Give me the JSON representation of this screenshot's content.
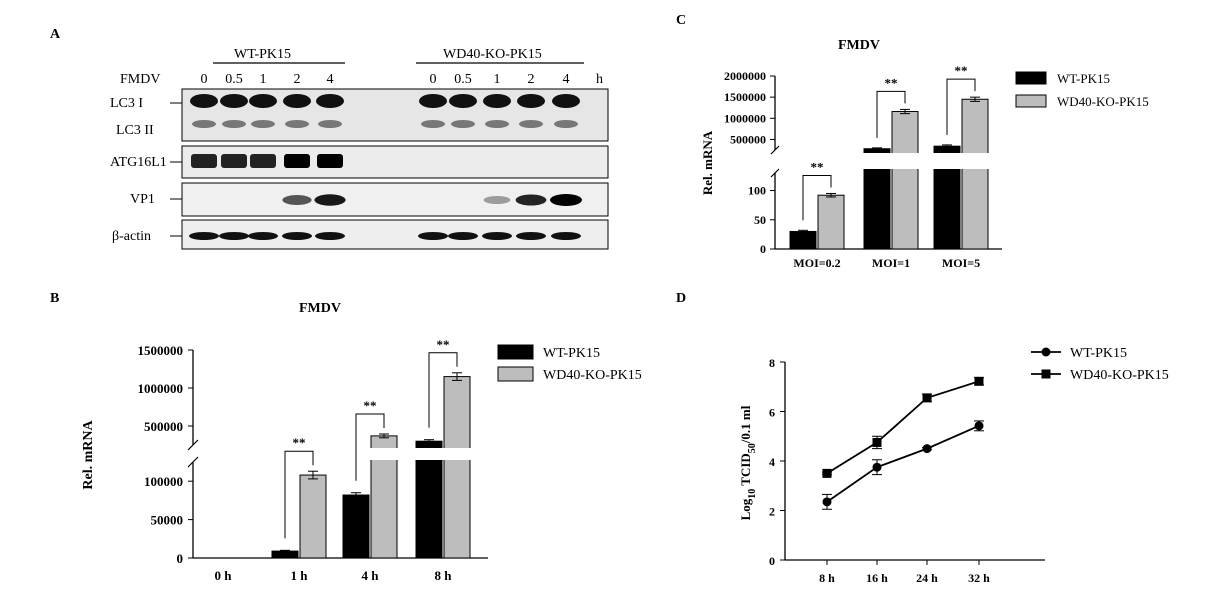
{
  "panels": {
    "A": {
      "letter": "A",
      "group_wt": "WT-PK15",
      "group_ko": "WD40-KO-PK15",
      "treatment": "FMDV",
      "times_wt": [
        "0",
        "0.5",
        "1",
        "2",
        "4"
      ],
      "times_ko": [
        "0",
        "0.5",
        "1",
        "2",
        "4"
      ],
      "unit": "h",
      "rows": [
        {
          "label": "LC3 I",
          "label2": "LC3 II"
        },
        {
          "label": "ATG16L1"
        },
        {
          "label": "VP1"
        },
        {
          "label": "β-actin"
        }
      ]
    },
    "B": {
      "letter": "B"
    },
    "C": {
      "letter": "C"
    },
    "D": {
      "letter": "D"
    }
  },
  "chart_data": [
    {
      "panel": "C",
      "type": "bar",
      "title": "FMDV",
      "ylabel": "Rel. mRNA",
      "categories": [
        "MOI=0.2",
        "MOI=1",
        "MOI=5"
      ],
      "series": [
        {
          "name": "WT-PK15",
          "color": "#000000",
          "values": [
            30,
            280000,
            340000
          ],
          "err": [
            2,
            20000,
            30000
          ]
        },
        {
          "name": "WD40-KO-PK15",
          "color": "#bdbdbd",
          "values": [
            92,
            1160000,
            1450000
          ],
          "err": [
            3,
            50000,
            50000
          ]
        }
      ],
      "axis_break": true,
      "yticks_lower": [
        0,
        50,
        100
      ],
      "yticks_upper": [
        "500000",
        "1000000",
        "1500000",
        "2000000"
      ],
      "significance": [
        "**",
        "**",
        "**"
      ],
      "legend": "right"
    },
    {
      "panel": "B",
      "type": "bar",
      "title": "FMDV",
      "ylabel": "Rel. mRNA",
      "categories": [
        "0 h",
        "1 h",
        "4 h",
        "8 h"
      ],
      "series": [
        {
          "name": "WT-PK15",
          "color": "#000000",
          "values": [
            0,
            9000,
            82000,
            300000
          ],
          "err": [
            0,
            1000,
            3000,
            20000
          ]
        },
        {
          "name": "WD40-KO-PK15",
          "color": "#bdbdbd",
          "values": [
            0,
            108000,
            370000,
            1150000
          ],
          "err": [
            0,
            5000,
            25000,
            50000
          ]
        }
      ],
      "axis_break": true,
      "yticks_lower": [
        "0",
        "50000",
        "100000"
      ],
      "yticks_upper": [
        "500000",
        "1000000",
        "1500000"
      ],
      "significance": [
        "**",
        "**",
        "**"
      ],
      "legend": "right"
    },
    {
      "panel": "D",
      "type": "line",
      "ylabel_main": "Log",
      "ylabel_sub": "10",
      "ylabel_mid": " TCID",
      "ylabel_sub2": "50",
      "ylabel_end": "/0.1 ml",
      "x": [
        "8 h",
        "16 h",
        "24 h",
        "32 h"
      ],
      "series": [
        {
          "name": "WT-PK15",
          "marker": "circle",
          "values": [
            2.35,
            3.75,
            4.5,
            5.42
          ],
          "err": [
            0.3,
            0.3,
            0.05,
            0.2
          ]
        },
        {
          "name": "WD40-KO-PK15",
          "marker": "square",
          "values": [
            3.5,
            4.75,
            6.55,
            7.22
          ],
          "err": [
            0.05,
            0.25,
            0.15,
            0.15
          ]
        }
      ],
      "ylim": [
        0,
        8
      ],
      "yticks": [
        "0",
        "2",
        "4",
        "6",
        "8"
      ],
      "legend": "top-right"
    }
  ]
}
